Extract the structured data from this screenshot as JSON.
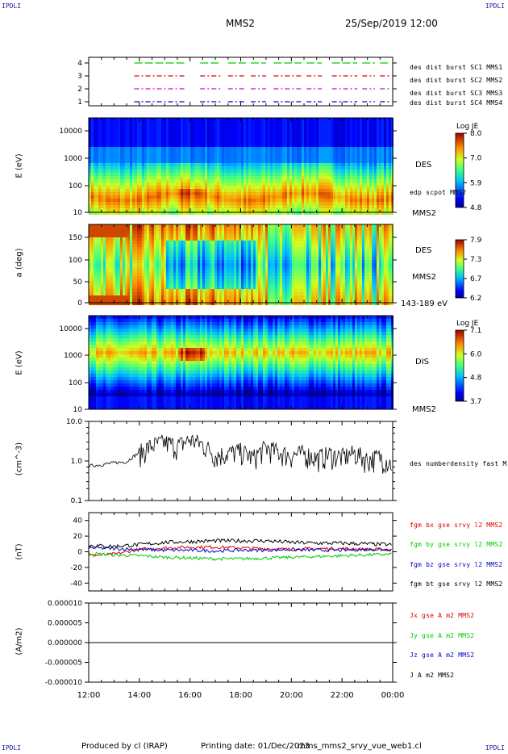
{
  "header": {
    "corner_tl": "IPDLI",
    "corner_tr": "IPDLI",
    "corner_bl": "IPDLI",
    "corner_br": "IPDLI",
    "title": "MMS2",
    "datetime": "25/Sep/2019 12:00"
  },
  "footer": {
    "producer": "Produced by cl (IRAP)",
    "printing": "Printing date: 01/Dec/2023",
    "filename": "mms_mms2_srvy_vue_web1.cl"
  },
  "colors": {
    "blue": "#0000c8",
    "magenta": "#dd00dd",
    "red": "#dd0000",
    "green": "#00cc00",
    "black": "#000000"
  },
  "chart_data": [
    {
      "type": "timeline",
      "id": "burst",
      "yticks": [
        "4",
        "3",
        "2",
        "1"
      ],
      "right_labels": [
        {
          "text": "des dist burst SC1 MMS1",
          "color": "#0000c8"
        },
        {
          "text": "des dist burst SC2 MMS2",
          "color": "#dd00dd"
        },
        {
          "text": "des dist burst SC3 MMS3",
          "color": "#dd0000"
        },
        {
          "text": "des dist burst SC4 MMS4",
          "color": "#00cc00"
        }
      ],
      "bursts_hours": [
        [
          13.8,
          15.8
        ],
        [
          16.4,
          17.2
        ],
        [
          17.5,
          18.2
        ],
        [
          18.4,
          19.0
        ],
        [
          19.3,
          20.4
        ],
        [
          20.6,
          21.2
        ],
        [
          21.6,
          22.6
        ],
        [
          22.8,
          23.3
        ],
        [
          23.5,
          23.9
        ]
      ]
    },
    {
      "type": "heatmap",
      "id": "des-energy",
      "ylabel": "E (eV)",
      "yticks": [
        "10000",
        "1000",
        "100",
        "10"
      ],
      "colorbar": {
        "title": "Log JE",
        "ticks": [
          "8.0",
          "7.0",
          "5.9",
          "4.8"
        ]
      },
      "right_labels": [
        "DES",
        "edp scpot MMS2",
        "MMS2"
      ]
    },
    {
      "type": "heatmap",
      "id": "des-pitch",
      "ylabel": "a (deg)",
      "yticks": [
        "150",
        "100",
        "50",
        "0"
      ],
      "colorbar": {
        "title": "",
        "ticks": [
          "7.9",
          "7.3",
          "6.7",
          "6.2"
        ]
      },
      "right_labels": [
        "DES",
        "MMS2",
        "143-189 eV"
      ]
    },
    {
      "type": "heatmap",
      "id": "dis-energy",
      "ylabel": "E (eV)",
      "yticks": [
        "10000",
        "1000",
        "100",
        "10"
      ],
      "colorbar": {
        "title": "Log JE",
        "ticks": [
          "7.1",
          "6.0",
          "4.8",
          "3.7"
        ]
      },
      "right_labels": [
        "DIS",
        "MMS2"
      ]
    },
    {
      "type": "line",
      "id": "density",
      "ylabel": "(cm^-3)",
      "yscale": "log",
      "yticks": [
        "10.0",
        "1.0",
        "0.1"
      ],
      "ylim": [
        0.1,
        10.0
      ],
      "series": [
        {
          "name": "des numberdensity fast M",
          "color": "#000000",
          "x": [
            12.0,
            12.5,
            13.0,
            13.5,
            14.0,
            14.5,
            15.0,
            15.5,
            16.0,
            16.5,
            17.0,
            17.5,
            18.0,
            18.5,
            19.0,
            19.5,
            20.0,
            20.5,
            21.0,
            21.5,
            22.0,
            22.5,
            23.0,
            23.5,
            24.0
          ],
          "y": [
            0.75,
            0.8,
            0.9,
            0.95,
            1.6,
            2.5,
            3.0,
            2.4,
            3.5,
            2.6,
            1.4,
            1.6,
            1.8,
            1.2,
            2.2,
            1.7,
            1.4,
            1.6,
            1.2,
            1.5,
            1.3,
            1.6,
            1.1,
            1.3,
            0.8
          ]
        }
      ]
    },
    {
      "type": "line",
      "id": "fgm",
      "ylabel": "(nT)",
      "yticks": [
        "40",
        "20",
        "0",
        "-20",
        "-40"
      ],
      "ylim": [
        -50,
        50
      ],
      "series": [
        {
          "name": "fgm bx gse srvy l2 MMS2",
          "color": "#dd0000",
          "x": [
            12,
            13,
            14,
            15,
            16,
            17,
            18,
            19,
            20,
            21,
            22,
            23,
            24
          ],
          "y": [
            -5,
            -3,
            3,
            5,
            6,
            6,
            5,
            4,
            3,
            4,
            4,
            3,
            3
          ]
        },
        {
          "name": "fgm by gse srvy l2 MMS2",
          "color": "#00cc00",
          "x": [
            12,
            13,
            14,
            15,
            16,
            17,
            18,
            19,
            20,
            21,
            22,
            23,
            24
          ],
          "y": [
            -2,
            -4,
            -5,
            -7,
            -8,
            -9,
            -9,
            -8,
            -7,
            -6,
            -5,
            -4,
            -3
          ]
        },
        {
          "name": "fgm bz gse srvy l2 MMS2",
          "color": "#0000c8",
          "x": [
            12,
            13,
            14,
            15,
            16,
            17,
            18,
            19,
            20,
            21,
            22,
            23,
            24
          ],
          "y": [
            5,
            4,
            3,
            2,
            2,
            1,
            2,
            2,
            3,
            2,
            2,
            3,
            3
          ]
        },
        {
          "name": "fgm bt gse srvy l2 MMS2",
          "color": "#000000",
          "x": [
            12,
            13,
            14,
            15,
            16,
            17,
            18,
            19,
            20,
            21,
            22,
            23,
            24
          ],
          "y": [
            8,
            7,
            9,
            12,
            13,
            14,
            14,
            14,
            12,
            11,
            11,
            10,
            9
          ]
        }
      ]
    },
    {
      "type": "line",
      "id": "current",
      "ylabel": "(A/m2)",
      "yticks": [
        "0.000010",
        "0.000005",
        "0.000000",
        "-0.000005",
        "-0.000010"
      ],
      "ylim": [
        -1e-05,
        1e-05
      ],
      "series": [
        {
          "name": "Jx gse A m2 MMS2",
          "color": "#dd0000",
          "x": [
            12,
            24
          ],
          "y": [
            0,
            0
          ]
        },
        {
          "name": "Jy gse A m2 MMS2",
          "color": "#00cc00",
          "x": [
            12,
            24
          ],
          "y": [
            0,
            0
          ]
        },
        {
          "name": "Jz gse A m2 MMS2",
          "color": "#0000c8",
          "x": [
            12,
            24
          ],
          "y": [
            0,
            0
          ]
        },
        {
          "name": "J A m2 MMS2",
          "color": "#000000",
          "x": [
            12,
            24
          ],
          "y": [
            0,
            0
          ]
        }
      ]
    }
  ],
  "xaxis": {
    "ticks": [
      "12:00",
      "14:00",
      "16:00",
      "18:00",
      "20:00",
      "22:00",
      "00:00"
    ]
  }
}
